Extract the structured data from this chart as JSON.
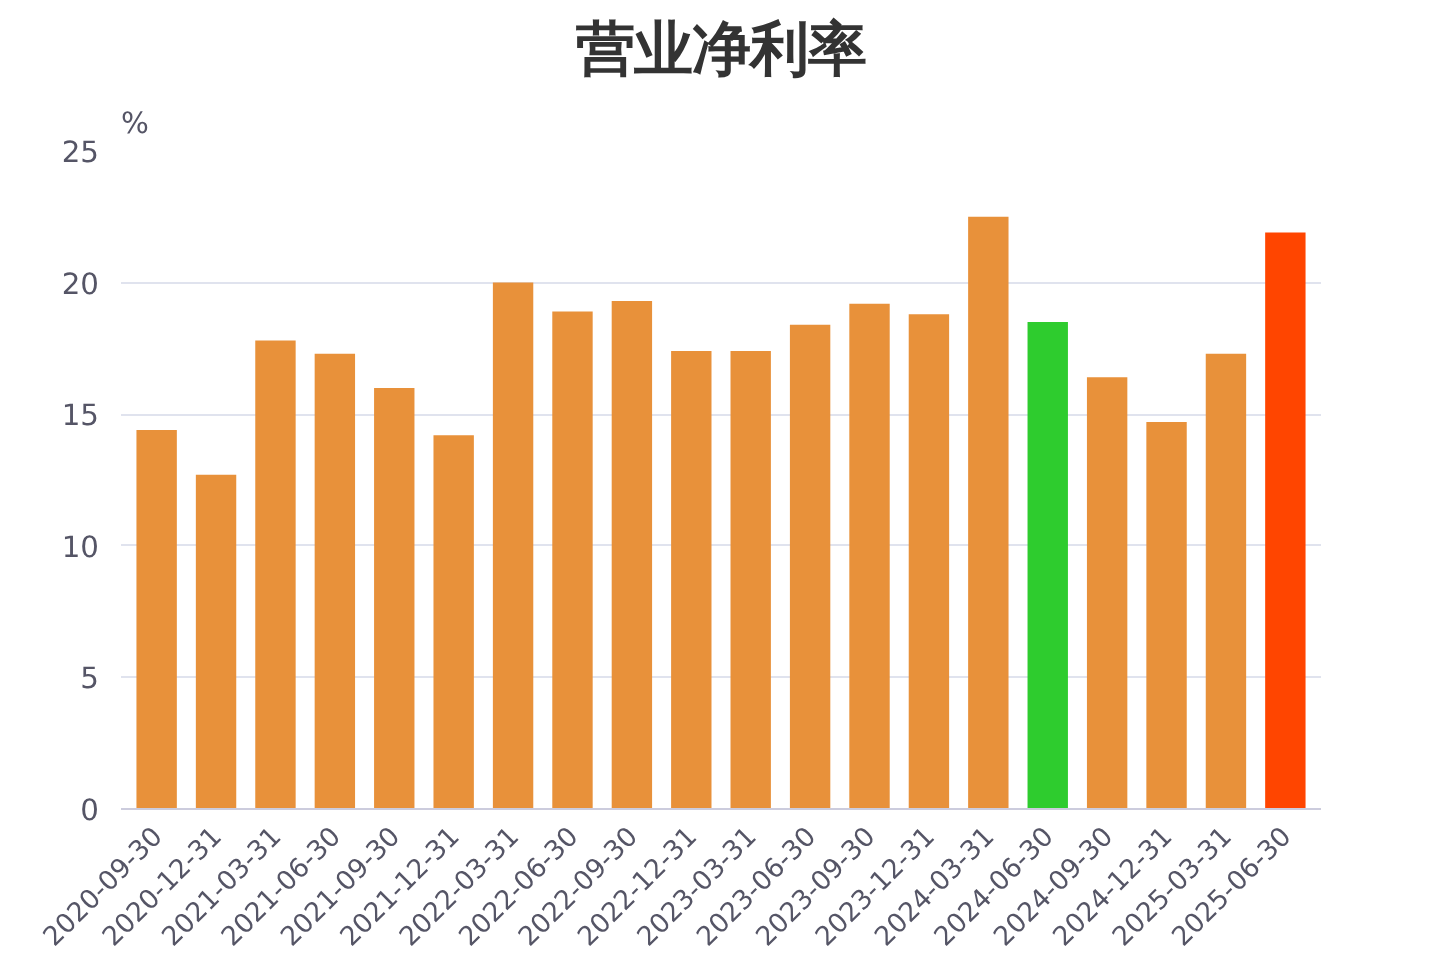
{
  "chart_data": {
    "type": "bar",
    "title": "营业净利率",
    "ylabel": "%",
    "categories": [
      "2020-09-30",
      "2020-12-31",
      "2021-03-31",
      "2021-06-30",
      "2021-09-30",
      "2021-12-31",
      "2022-03-31",
      "2022-06-30",
      "2022-09-30",
      "2022-12-31",
      "2023-03-31",
      "2023-06-30",
      "2023-09-30",
      "2023-12-31",
      "2024-03-31",
      "2024-06-30",
      "2024-09-30",
      "2024-12-31",
      "2025-03-31",
      "2025-06-30"
    ],
    "values": [
      14.4,
      12.7,
      17.8,
      17.3,
      16.0,
      14.2,
      20.0,
      18.9,
      19.3,
      17.4,
      17.4,
      18.4,
      19.2,
      18.8,
      22.5,
      18.5,
      16.4,
      14.7,
      17.3,
      21.9
    ],
    "colors": [
      "#e8913a",
      "#e8913a",
      "#e8913a",
      "#e8913a",
      "#e8913a",
      "#e8913a",
      "#e8913a",
      "#e8913a",
      "#e8913a",
      "#e8913a",
      "#e8913a",
      "#e8913a",
      "#e8913a",
      "#e8913a",
      "#e8913a",
      "#2ecc2e",
      "#e8913a",
      "#e8913a",
      "#e8913a",
      "#ff4500"
    ],
    "ylim": [
      0,
      25
    ],
    "yticks": [
      0,
      5,
      10,
      15,
      20,
      25
    ],
    "grid": "y"
  }
}
